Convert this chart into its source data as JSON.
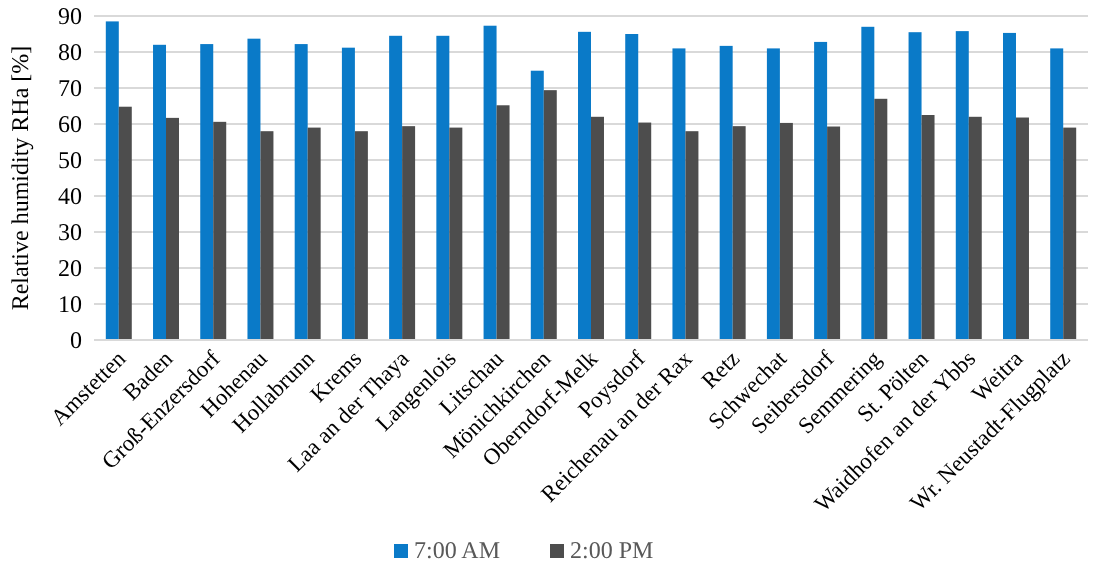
{
  "chart_data": {
    "type": "bar",
    "ylabel": "Relative humidity RHa [%]",
    "categories": [
      "Amstetten",
      "Baden",
      "Groß-Enzersdorf",
      "Hohenau",
      "Hollabrunn",
      "Krems",
      "Laa an der Thaya",
      "Langenlois",
      "Litschau",
      "Mönichkirchen",
      "Oberndorf-Melk",
      "Poysdorf",
      "Reichenau an der Rax",
      "Retz",
      "Schwechat",
      "Seibersdorf",
      "Semmering",
      "St. Pölten",
      "Waidhofen an der Ybbs",
      "Weitra",
      "Wr. Neustadt-Flugplatz"
    ],
    "series": [
      {
        "name": "7:00 AM",
        "color": "#0a7ac8",
        "values": [
          88.5,
          82,
          82.2,
          83.7,
          82.2,
          81.2,
          84.5,
          84.5,
          87.3,
          74.8,
          85.6,
          85,
          81,
          81.7,
          81,
          82.8,
          87,
          85.5,
          85.8,
          85.3,
          81
        ]
      },
      {
        "name": "2:00 PM",
        "color": "#4d4d4d",
        "values": [
          64.8,
          61.7,
          60.6,
          58,
          59,
          58,
          59.4,
          59,
          65.2,
          69.4,
          62,
          60.4,
          58,
          59.4,
          60.3,
          59.3,
          67,
          62.5,
          62,
          61.8,
          59
        ]
      }
    ],
    "ylim": [
      0,
      90
    ],
    "yticks": [
      0,
      10,
      20,
      30,
      40,
      50,
      60,
      70,
      80,
      90
    ],
    "grid": "y",
    "legend": "bottom"
  }
}
